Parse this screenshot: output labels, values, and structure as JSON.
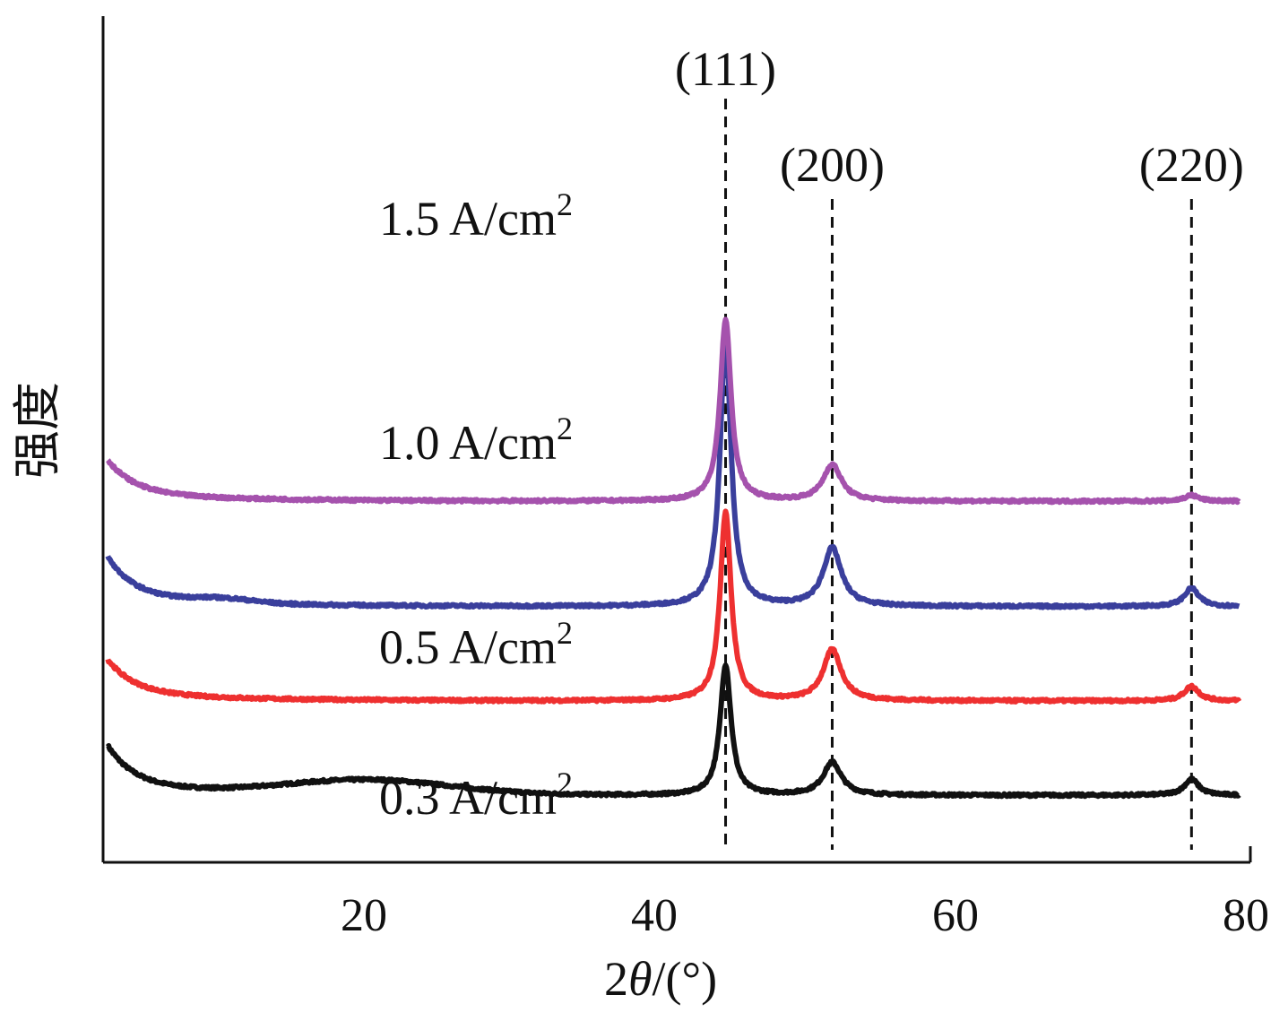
{
  "chart_data": {
    "type": "line",
    "xlabel_prefix": "2",
    "xlabel_symbol": "θ",
    "xlabel_suffix": "/(°)",
    "ylabel": "强度",
    "xlim": [
      2,
      80
    ],
    "xticks": [
      20,
      40,
      60,
      80
    ],
    "grid": false,
    "peaks": [
      {
        "label": "(111)",
        "x": 44.5
      },
      {
        "label": "(200)",
        "x": 51.8
      },
      {
        "label": "(220)",
        "x": 76.4
      }
    ],
    "series": [
      {
        "name": "0.3 A/cm",
        "superscript": "2",
        "color": "#111111",
        "baseline": 8,
        "rise": 6,
        "hump": {
          "center": 20,
          "width": 8,
          "height": 2
        },
        "peak_heights": [
          18,
          4.5,
          2.2
        ]
      },
      {
        "name": "0.5 A/cm",
        "superscript": "2",
        "color": "#ee3030",
        "baseline": 21,
        "rise": 5,
        "hump": {
          "center": 20,
          "width": 8,
          "height": 0
        },
        "peak_heights": [
          26,
          7,
          2
        ]
      },
      {
        "name": "1.0 A/cm",
        "superscript": "2",
        "color": "#3a3f9c",
        "baseline": 34,
        "rise": 6,
        "hump": {
          "center": 10,
          "width": 3,
          "height": 0.6
        },
        "peak_heights": [
          37,
          8,
          2.5
        ]
      },
      {
        "name": "1.5 A/cm",
        "superscript": "2",
        "color": "#a552ad",
        "baseline": 48.5,
        "rise": 5,
        "hump": {
          "center": 20,
          "width": 8,
          "height": 0
        },
        "peak_heights": [
          25,
          5,
          0.8
        ]
      }
    ]
  }
}
